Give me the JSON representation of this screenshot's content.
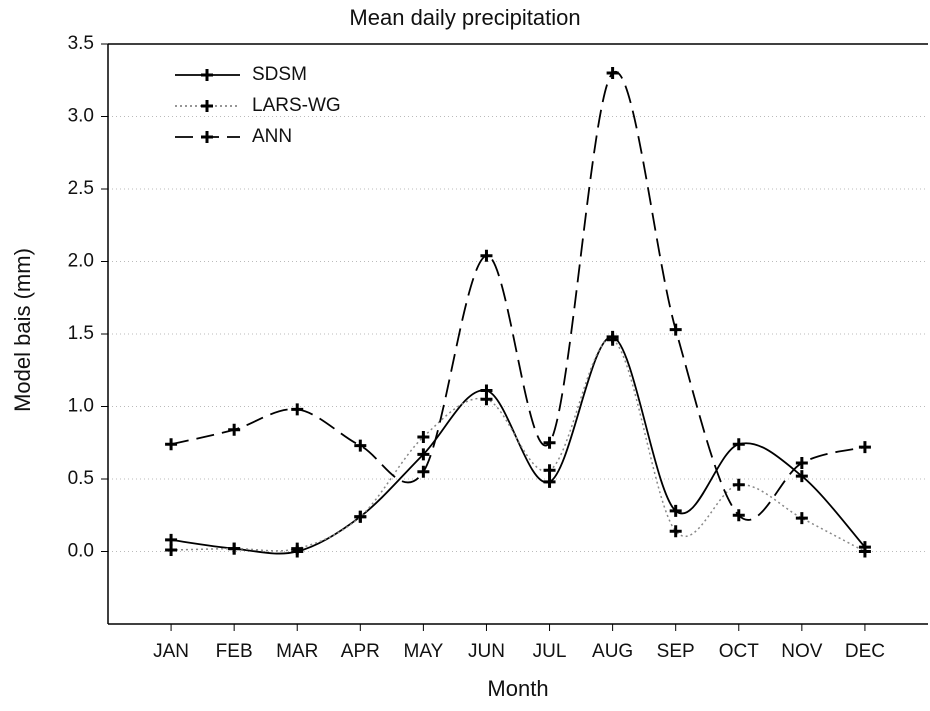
{
  "chart_data": {
    "type": "line",
    "title": "Mean daily precipitation",
    "x_label": "Month",
    "y_label": "Model bais (mm)",
    "categories": [
      "JAN",
      "FEB",
      "MAR",
      "APR",
      "MAY",
      "JUN",
      "JUL",
      "AUG",
      "SEP",
      "OCT",
      "NOV",
      "DEC"
    ],
    "series": [
      {
        "name": "SDSM",
        "color": "#000000",
        "dash": "solid",
        "values": [
          0.08,
          0.02,
          0.0,
          0.24,
          0.67,
          1.11,
          0.48,
          1.48,
          0.28,
          0.74,
          0.52,
          0.03
        ]
      },
      {
        "name": "LARS-WG",
        "color": "#888888",
        "dash": "dotted",
        "values": [
          0.01,
          0.02,
          0.02,
          0.24,
          0.79,
          1.05,
          0.56,
          1.46,
          0.14,
          0.46,
          0.23,
          0.0
        ]
      },
      {
        "name": "ANN",
        "color": "#000000",
        "dash": "dashed",
        "values": [
          0.74,
          0.84,
          0.98,
          0.73,
          0.55,
          2.04,
          0.75,
          3.3,
          1.53,
          0.25,
          0.61,
          0.72
        ]
      }
    ],
    "ylim": [
      -0.5,
      3.5
    ],
    "yticks": [
      {
        "value": 0,
        "label": "0.0"
      },
      0.5,
      {
        "value": 1,
        "label": "1.0"
      },
      1.5,
      {
        "value": 2,
        "label": "2.0"
      },
      2.5,
      {
        "value": 3,
        "label": "3.0"
      },
      3.5
    ],
    "grid": true,
    "legend": "upper-left"
  }
}
